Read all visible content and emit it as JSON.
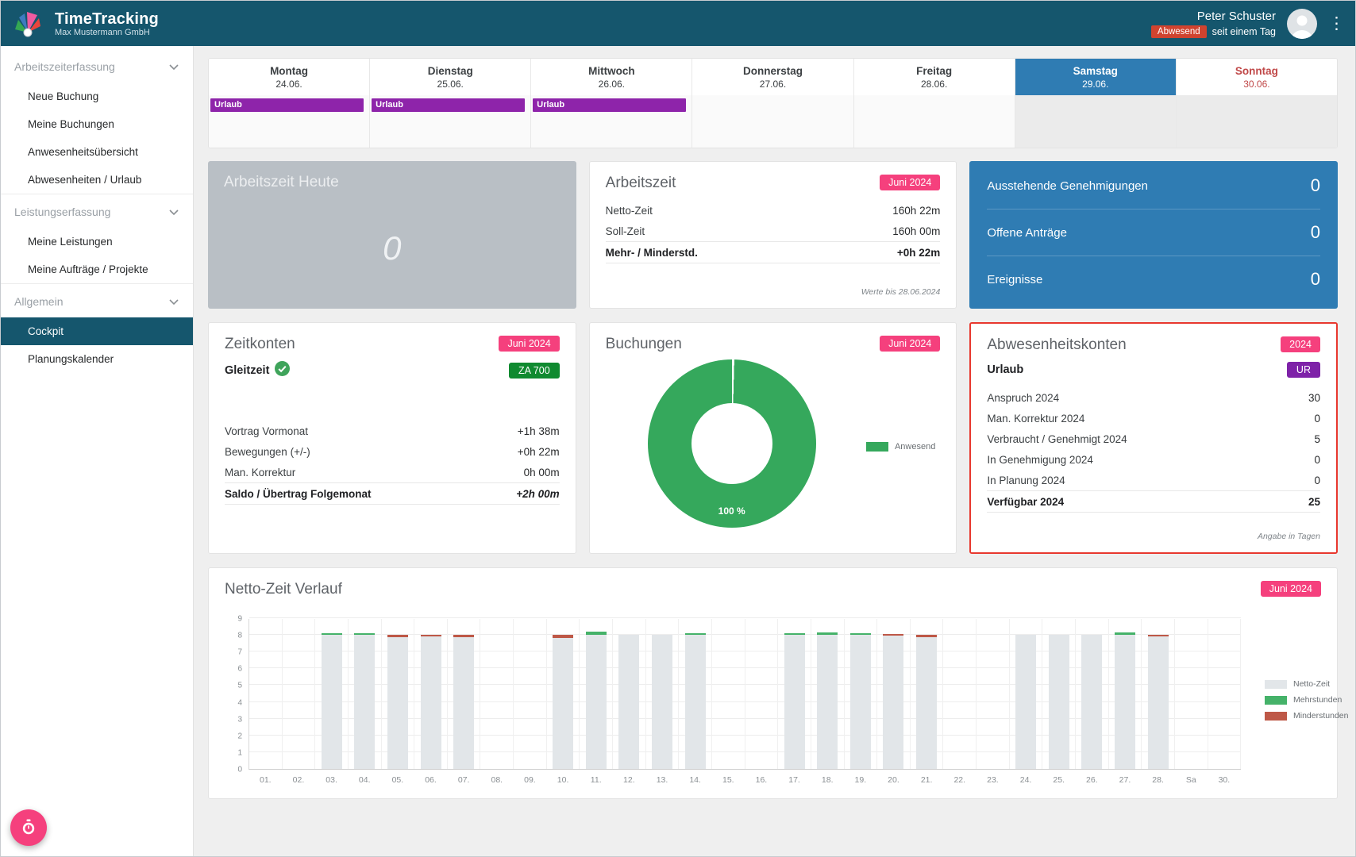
{
  "header": {
    "app_title": "TimeTracking",
    "company": "Max Mustermann GmbH",
    "user_name": "Peter Schuster",
    "status_badge": "Abwesend",
    "status_since": "seit einem Tag"
  },
  "colors": {
    "header_teal": "#15566D",
    "accent_pink": "#F5407D",
    "status_red": "#D0432F",
    "highlight_red": "#E8382E",
    "blue": "#2F7CB3",
    "urlaub_purple": "#8E24AA",
    "badge_purple": "#7E22A8",
    "badge_green": "#108A30",
    "donut_green": "#35A85C",
    "sunday_red": "#C04848"
  },
  "sidebar": {
    "sections": [
      {
        "label": "Arbeitszeiterfassung",
        "items": [
          {
            "label": "Neue Buchung",
            "active": false
          },
          {
            "label": "Meine Buchungen",
            "active": false
          },
          {
            "label": "Anwesenheitsübersicht",
            "active": false
          },
          {
            "label": "Abwesenheiten / Urlaub",
            "active": false
          }
        ]
      },
      {
        "label": "Leistungserfassung",
        "items": [
          {
            "label": "Meine Leistungen",
            "active": false
          },
          {
            "label": "Meine Aufträge / Projekte",
            "active": false
          }
        ]
      },
      {
        "label": "Allgemein",
        "items": [
          {
            "label": "Cockpit",
            "active": true
          },
          {
            "label": "Planungskalender",
            "active": false
          }
        ]
      }
    ]
  },
  "week_calendar": {
    "days": [
      {
        "name": "Montag",
        "date": "24.06.",
        "event": "Urlaub",
        "weekend": false,
        "selected": false,
        "sunday": false
      },
      {
        "name": "Dienstag",
        "date": "25.06.",
        "event": "Urlaub",
        "weekend": false,
        "selected": false,
        "sunday": false
      },
      {
        "name": "Mittwoch",
        "date": "26.06.",
        "event": "Urlaub",
        "weekend": false,
        "selected": false,
        "sunday": false
      },
      {
        "name": "Donnerstag",
        "date": "27.06.",
        "event": null,
        "weekend": false,
        "selected": false,
        "sunday": false
      },
      {
        "name": "Freitag",
        "date": "28.06.",
        "event": null,
        "weekend": false,
        "selected": false,
        "sunday": false
      },
      {
        "name": "Samstag",
        "date": "29.06.",
        "event": null,
        "weekend": true,
        "selected": true,
        "sunday": false
      },
      {
        "name": "Sonntag",
        "date": "30.06.",
        "event": null,
        "weekend": true,
        "selected": false,
        "sunday": true
      }
    ]
  },
  "cards": {
    "arbeitszeit_heute": {
      "title": "Arbeitszeit Heute",
      "value": "0"
    },
    "arbeitszeit": {
      "title": "Arbeitszeit",
      "badge": "Juni 2024",
      "rows": [
        {
          "label": "Netto-Zeit",
          "value": "160h 22m"
        },
        {
          "label": "Soll-Zeit",
          "value": "160h 00m"
        },
        {
          "label": "Mehr- / Minderstd.",
          "value": "+0h 22m",
          "bold": true,
          "top_line": true,
          "bottom_line": true
        }
      ],
      "footnote": "Werte bis 28.06.2024"
    },
    "genehmigungen": {
      "rows": [
        {
          "label": "Ausstehende Genehmigungen",
          "value": "0"
        },
        {
          "label": "Offene Anträge",
          "value": "0"
        },
        {
          "label": "Ereignisse",
          "value": "0"
        }
      ]
    },
    "zeitkonten": {
      "title": "Zeitkonten",
      "badge": "Juni 2024",
      "account_label": "Gleitzeit",
      "account_badge": "ZA 700",
      "rows": [
        {
          "label": "Vortrag Vormonat",
          "value": "+1h 38m"
        },
        {
          "label": "Bewegungen (+/-)",
          "value": "+0h 22m"
        },
        {
          "label": "Man. Korrektur",
          "value": "0h 00m"
        },
        {
          "label": "Saldo / Übertrag Folgemonat",
          "value": "+2h 00m",
          "bold": true,
          "italic_value": true,
          "top_line": true,
          "bottom_line": true
        }
      ]
    },
    "buchungen": {
      "title": "Buchungen",
      "badge": "Juni 2024"
    },
    "abwesenheitskonten": {
      "title": "Abwesenheitskonten",
      "badge": "2024",
      "highlighted": true,
      "account_label": "Urlaub",
      "account_badge": "UR",
      "rows": [
        {
          "label": "Anspruch 2024",
          "value": "30"
        },
        {
          "label": "Man. Korrektur 2024",
          "value": "0"
        },
        {
          "label": "Verbraucht / Genehmigt 2024",
          "value": "5"
        },
        {
          "label": "In Genehmigung 2024",
          "value": "0"
        },
        {
          "label": "In Planung 2024",
          "value": "0"
        },
        {
          "label": "Verfügbar 2024",
          "value": "25",
          "bold": true,
          "top_line": true,
          "bottom_line": true
        }
      ],
      "footnote": "Angabe in Tagen"
    }
  },
  "chart_data": [
    {
      "type": "pie",
      "title": "Buchungen",
      "badge": "Juni 2024",
      "slices": [
        {
          "label": "Anwesend",
          "value": 100,
          "color": "#35A85C"
        }
      ],
      "center_label": "100 %",
      "legend_position": "right",
      "donut": true
    },
    {
      "type": "bar",
      "stacked": true,
      "title": "Netto-Zeit Verlauf",
      "badge": "Juni 2024",
      "ylim": [
        0,
        9
      ],
      "ytick_labels": [
        "0",
        "1",
        "2",
        "3",
        "4",
        "5",
        "6",
        "7",
        "8",
        "9"
      ],
      "grid": true,
      "legend_position": "right",
      "categories": [
        "01.",
        "02.",
        "03.",
        "04.",
        "05.",
        "06.",
        "07.",
        "08.",
        "09.",
        "10.",
        "11.",
        "12.",
        "13.",
        "14.",
        "15.",
        "16.",
        "17.",
        "18.",
        "19.",
        "20.",
        "21.",
        "22.",
        "23.",
        "24.",
        "25.",
        "26.",
        "27.",
        "28.",
        "Sa",
        "30."
      ],
      "series": [
        {
          "name": "Netto-Zeit",
          "color": "#E2E6E9",
          "values": [
            0,
            0,
            8,
            8,
            7.85,
            7.9,
            7.85,
            0,
            0,
            7.8,
            8,
            8,
            8,
            8,
            0,
            0,
            8,
            8,
            8,
            7.95,
            7.85,
            0,
            0,
            8,
            8,
            8,
            8,
            7.9,
            0,
            0
          ]
        },
        {
          "name": "Mehrstunden",
          "color": "#45B269",
          "values": [
            0,
            0,
            0.12,
            0.06,
            0,
            0,
            0,
            0,
            0,
            0,
            0.2,
            0,
            0,
            0.12,
            0,
            0,
            0.05,
            0.15,
            0.08,
            0,
            0,
            0,
            0,
            0,
            0,
            0,
            0.15,
            0,
            0,
            0
          ]
        },
        {
          "name": "Minderstunden",
          "color": "#BE5847",
          "values": [
            0,
            0,
            0,
            0,
            0.15,
            0.1,
            0.15,
            0,
            0,
            0.2,
            0,
            0,
            0,
            0,
            0,
            0,
            0,
            0,
            0,
            0.05,
            0.15,
            0,
            0,
            0,
            0,
            0,
            0,
            0.1,
            0,
            0
          ]
        }
      ]
    }
  ],
  "fab": {
    "icon": "stopwatch-icon"
  }
}
